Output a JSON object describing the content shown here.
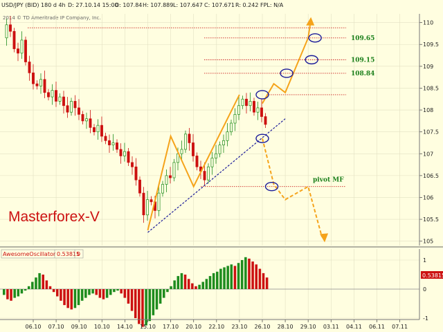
{
  "header": {
    "symbol": "USD/JPY (BID) 180 d 4h",
    "date": "D: 27.10.14 15:00",
    "open": "O: 107.84",
    "high": "H: 107.889",
    "low": "L: 107.647",
    "close": "C: 107.671",
    "range": "R: 0.242",
    "fpl": "FPL: N/A"
  },
  "copyright": "2014 © TD Ameritrade IP Company, Inc.",
  "watermark": "Masterforex-V",
  "colors": {
    "background": "#fffee0",
    "bull": "#1e8c1e",
    "bear": "#cc1111",
    "forecast": "#f5a31a",
    "trendline": "#1a1a99",
    "level": "#cc2222",
    "level_text": "#1a7f1a"
  },
  "chart_data": [
    {
      "type": "candlestick",
      "title": "USD/JPY (BID) 180 d 4h",
      "ylim": [
        104.9,
        110.2
      ],
      "y_ticks": [
        105,
        105.5,
        106,
        106.5,
        107,
        107.5,
        108,
        108.5,
        109,
        109.5,
        110
      ],
      "x_ticks": [
        "06.10",
        "07.10",
        "09.10",
        "10.10",
        "14.10",
        "15.10",
        "17.10",
        "20.10",
        "22.10",
        "23.10",
        "26.10",
        "28.10",
        "29.10",
        "03.11",
        "04.11",
        "06.11",
        "07.11"
      ],
      "grid": true,
      "close_path": [
        109.65,
        109.95,
        109.8,
        109.4,
        109.3,
        109.6,
        109.1,
        108.85,
        108.6,
        108.55,
        108.7,
        108.4,
        108.3,
        108.45,
        108.2,
        108.3,
        108.1,
        107.95,
        108.2,
        108.05,
        107.9,
        107.75,
        107.8,
        107.6,
        107.5,
        107.65,
        107.4,
        107.3,
        107.2,
        107.25,
        107.1,
        106.95,
        107.05,
        106.8,
        106.7,
        106.4,
        106.1,
        105.6,
        105.95,
        105.9,
        105.7,
        106.1,
        106.3,
        106.5,
        106.45,
        106.8,
        107.0,
        107.1,
        107.45,
        107.25,
        106.95,
        106.7,
        106.6,
        106.4,
        106.7,
        106.9,
        107.0,
        107.2,
        107.3,
        107.5,
        107.7,
        107.9,
        108.1,
        108.25,
        108.1,
        108.2,
        107.95,
        108.05,
        107.85,
        107.67
      ],
      "levels": [
        {
          "label": "109.65",
          "value": 109.65
        },
        {
          "label": "109.15",
          "value": 109.15
        },
        {
          "label": "108.84",
          "value": 108.84
        },
        {
          "label": "",
          "value": 108.35
        },
        {
          "label": "",
          "value": 109.88
        },
        {
          "label": "pivot MF",
          "value": 106.25
        }
      ],
      "trendline": {
        "start": [
          "15.10",
          105.2
        ],
        "end": [
          "28.10",
          107.8
        ]
      },
      "wave_pattern": [
        [
          "15.10",
          105.25
        ],
        [
          "17.10",
          107.4
        ],
        [
          "20.10",
          106.25
        ],
        [
          "23.10",
          108.35
        ]
      ],
      "forecast_up": [
        [
          "26.10",
          108.15
        ],
        [
          "27.10",
          108.6
        ],
        [
          "28.10",
          108.4
        ],
        [
          "29.10",
          109.65
        ]
      ],
      "forecast_down": [
        [
          "26.10",
          107.35
        ],
        [
          "27.10",
          106.3
        ],
        [
          "28.10",
          105.95
        ],
        [
          "29.10",
          106.25
        ],
        [
          "30.10",
          105.1
        ]
      ],
      "markers": [
        [
          "26.10",
          108.35
        ],
        [
          "28.10",
          108.84
        ],
        [
          "29.10",
          109.15
        ],
        [
          "29.10",
          109.65
        ],
        [
          "26.10",
          107.35
        ],
        [
          "27.10",
          106.25
        ]
      ]
    },
    {
      "type": "bar",
      "title": "AwesomeOscillator",
      "value_label": "0.53815",
      "extra_label": "0",
      "ylim": [
        -1.4,
        1.2
      ],
      "y_ticks": [
        1,
        0,
        -1
      ],
      "values": [
        -0.2,
        -0.35,
        -0.4,
        -0.3,
        -0.25,
        -0.15,
        -0.05,
        0.1,
        0.25,
        0.4,
        0.55,
        0.5,
        0.3,
        0.1,
        -0.1,
        -0.25,
        -0.4,
        -0.55,
        -0.65,
        -0.7,
        -0.65,
        -0.55,
        -0.4,
        -0.3,
        -0.2,
        -0.15,
        -0.2,
        -0.3,
        -0.35,
        -0.3,
        -0.2,
        -0.1,
        -0.05,
        -0.15,
        -0.3,
        -0.5,
        -0.75,
        -1.0,
        -1.2,
        -1.3,
        -1.25,
        -1.1,
        -0.9,
        -0.7,
        -0.5,
        -0.3,
        -0.1,
        0.1,
        0.3,
        0.45,
        0.55,
        0.5,
        0.35,
        0.2,
        0.1,
        0.15,
        0.25,
        0.35,
        0.45,
        0.55,
        0.6,
        0.7,
        0.75,
        0.8,
        0.85,
        0.8,
        0.9,
        1.0,
        1.1,
        1.05,
        0.95,
        0.85,
        0.7,
        0.55,
        0.4
      ]
    }
  ]
}
